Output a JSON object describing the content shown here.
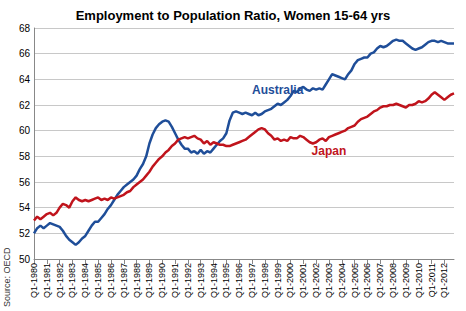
{
  "chart_data": {
    "type": "line",
    "title": "Employment to Population Ratio, Women 15-64 yrs",
    "source": "Source: OECD",
    "categories": [
      "Q1-1980",
      null,
      null,
      null,
      "Q1-1981",
      null,
      null,
      null,
      "Q1-1982",
      null,
      null,
      null,
      "Q1-1983",
      null,
      null,
      null,
      "Q1-1984",
      null,
      null,
      null,
      "Q1-1985",
      null,
      null,
      null,
      "Q1-1986",
      null,
      null,
      null,
      "Q1-1987",
      null,
      null,
      null,
      "Q1-1988",
      null,
      null,
      null,
      "Q1-1989",
      null,
      null,
      null,
      "Q1-1990",
      null,
      null,
      null,
      "Q1-1991",
      null,
      null,
      null,
      "Q1-1992",
      null,
      null,
      null,
      "Q1-1993",
      null,
      null,
      null,
      "Q1-1994",
      null,
      null,
      null,
      "Q1-1995",
      null,
      null,
      null,
      "Q1-1996",
      null,
      null,
      null,
      "Q1-1997",
      null,
      null,
      null,
      "Q1-1998",
      null,
      null,
      null,
      "Q1-1999",
      null,
      null,
      null,
      "Q1-2000",
      null,
      null,
      null,
      "Q1-2001",
      null,
      null,
      null,
      "Q1-2002",
      null,
      null,
      null,
      "Q1-2003",
      null,
      null,
      null,
      "Q1-2004",
      null,
      null,
      null,
      "Q1-2005",
      null,
      null,
      null,
      "Q1-2006",
      null,
      null,
      null,
      "Q1-2007",
      null,
      null,
      null,
      "Q1-2008",
      null,
      null,
      null,
      "Q1-2009",
      null,
      null,
      null,
      "Q1-2010",
      null,
      null,
      null,
      "Q1-2011",
      null,
      null,
      null,
      "Q1-2012",
      null,
      null,
      null
    ],
    "series": [
      {
        "name": "Australia",
        "color": "#1f4e99",
        "values": [
          52.0,
          52.4,
          52.6,
          52.4,
          52.6,
          52.8,
          52.7,
          52.6,
          52.5,
          52.2,
          51.8,
          51.5,
          51.3,
          51.1,
          51.3,
          51.6,
          51.8,
          52.2,
          52.6,
          52.9,
          52.9,
          53.2,
          53.5,
          53.9,
          54.2,
          54.6,
          55.0,
          55.3,
          55.6,
          55.8,
          56.0,
          56.2,
          56.5,
          57.0,
          57.4,
          58.0,
          59.0,
          59.7,
          60.2,
          60.5,
          60.7,
          60.8,
          60.7,
          60.3,
          59.8,
          59.3,
          58.9,
          58.6,
          58.6,
          58.3,
          58.4,
          58.2,
          58.5,
          58.2,
          58.4,
          58.3,
          58.6,
          58.9,
          59.2,
          59.4,
          59.8,
          60.8,
          61.4,
          61.5,
          61.4,
          61.3,
          61.4,
          61.3,
          61.2,
          61.4,
          61.2,
          61.3,
          61.5,
          61.6,
          61.7,
          61.9,
          62.1,
          62.0,
          62.2,
          62.4,
          62.7,
          63.1,
          63.0,
          63.3,
          63.4,
          63.2,
          63.1,
          63.3,
          63.2,
          63.3,
          63.2,
          63.6,
          64.0,
          64.4,
          64.3,
          64.2,
          64.1,
          64.0,
          64.4,
          64.7,
          65.2,
          65.5,
          65.6,
          65.7,
          65.7,
          66.0,
          66.1,
          66.4,
          66.6,
          66.5,
          66.6,
          66.8,
          67.0,
          67.1,
          67.0,
          67.0,
          66.8,
          66.6,
          66.4,
          66.3,
          66.4,
          66.5,
          66.7,
          66.9,
          67.0,
          67.0,
          66.9,
          67.0,
          66.9,
          66.8,
          66.8,
          66.8
        ]
      },
      {
        "name": "Japan",
        "color": "#c0141c",
        "values": [
          53.0,
          53.3,
          53.1,
          53.3,
          53.5,
          53.6,
          53.4,
          53.6,
          54.0,
          54.3,
          54.2,
          54.0,
          54.5,
          54.8,
          54.6,
          54.5,
          54.6,
          54.5,
          54.6,
          54.7,
          54.8,
          54.6,
          54.7,
          54.6,
          54.8,
          54.7,
          54.8,
          54.9,
          55.0,
          55.2,
          55.3,
          55.6,
          55.8,
          56.0,
          56.2,
          56.5,
          56.8,
          57.2,
          57.5,
          57.8,
          58.0,
          58.3,
          58.5,
          58.8,
          59.0,
          59.3,
          59.4,
          59.5,
          59.4,
          59.5,
          59.6,
          59.4,
          59.3,
          59.0,
          59.2,
          58.9,
          59.1,
          59.0,
          58.9,
          58.9,
          58.8,
          58.8,
          58.9,
          59.0,
          59.1,
          59.2,
          59.3,
          59.5,
          59.7,
          59.9,
          60.1,
          60.2,
          60.1,
          59.8,
          59.6,
          59.3,
          59.4,
          59.2,
          59.3,
          59.2,
          59.5,
          59.4,
          59.4,
          59.6,
          59.5,
          59.3,
          59.1,
          59.0,
          59.1,
          59.3,
          59.4,
          59.2,
          59.5,
          59.6,
          59.7,
          59.8,
          59.9,
          60.0,
          60.2,
          60.3,
          60.4,
          60.7,
          60.9,
          61.0,
          61.1,
          61.3,
          61.5,
          61.6,
          61.8,
          61.9,
          61.9,
          62.0,
          62.0,
          62.1,
          62.0,
          61.9,
          61.8,
          62.0,
          62.0,
          62.1,
          62.3,
          62.2,
          62.3,
          62.5,
          62.8,
          63.0,
          62.8,
          62.6,
          62.4,
          62.6,
          62.8,
          62.9
        ]
      }
    ],
    "ylim": [
      50,
      68
    ],
    "yticks": [
      50,
      52,
      54,
      56,
      58,
      60,
      62,
      64,
      66,
      68
    ],
    "grid": true
  }
}
